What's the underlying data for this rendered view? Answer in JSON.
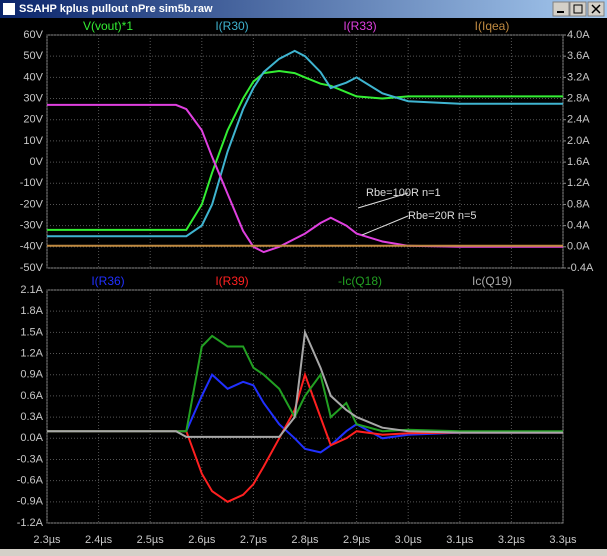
{
  "window": {
    "title": "SSAHP kplus pullout nPre sim5b.raw"
  },
  "chart_data": [
    {
      "type": "line",
      "x": [
        2.3,
        2.4,
        2.5,
        2.55,
        2.57,
        2.6,
        2.62,
        2.65,
        2.68,
        2.7,
        2.72,
        2.75,
        2.78,
        2.8,
        2.83,
        2.85,
        2.88,
        2.9,
        2.95,
        3.0,
        3.1,
        3.2,
        3.3
      ],
      "xlim": [
        2.3,
        3.3
      ],
      "ylim": [
        -50,
        60
      ],
      "yticks": [
        {
          "value": -50,
          "label": "-50V"
        },
        {
          "value": -40,
          "label": "-40V"
        },
        {
          "value": -30,
          "label": "-30V"
        },
        {
          "value": -20,
          "label": "-20V"
        },
        {
          "value": -10,
          "label": "-10V"
        },
        {
          "value": 0,
          "label": "0V"
        },
        {
          "value": 10,
          "label": "10V"
        },
        {
          "value": 20,
          "label": "20V"
        },
        {
          "value": 30,
          "label": "30V"
        },
        {
          "value": 40,
          "label": "40V"
        },
        {
          "value": 50,
          "label": "50V"
        },
        {
          "value": 60,
          "label": "60V"
        }
      ],
      "y2lim": [
        -0.4,
        4.0
      ],
      "y2ticks": [
        {
          "value": -0.4,
          "label": "-0.4A"
        },
        {
          "value": 0,
          "label": "0.0A"
        },
        {
          "value": 0.4,
          "label": "0.4A"
        },
        {
          "value": 0.8,
          "label": "0.8A"
        },
        {
          "value": 1.2,
          "label": "1.2A"
        },
        {
          "value": 1.6,
          "label": "1.6A"
        },
        {
          "value": 2.0,
          "label": "2.0A"
        },
        {
          "value": 2.4,
          "label": "2.4A"
        },
        {
          "value": 2.8,
          "label": "2.8A"
        },
        {
          "value": 3.2,
          "label": "3.2A"
        },
        {
          "value": 3.6,
          "label": "3.6A"
        },
        {
          "value": 4.0,
          "label": "4.0A"
        }
      ],
      "grid": true,
      "series": [
        {
          "name": "V(vout)*1",
          "color": "#33ee33",
          "values": [
            -32,
            -32,
            -32,
            -32,
            -32,
            -20,
            -5,
            15,
            30,
            38,
            42,
            43,
            42,
            40,
            37,
            36,
            33,
            31,
            30,
            31,
            31,
            31,
            31
          ]
        },
        {
          "name": "I(R30)",
          "color": "#3fb4d0",
          "axis": "y2",
          "values": [
            0.2,
            0.2,
            0.2,
            0.2,
            0.2,
            0.4,
            0.8,
            1.8,
            2.6,
            3.0,
            3.3,
            3.55,
            3.7,
            3.6,
            3.3,
            3.0,
            3.1,
            3.2,
            2.9,
            2.75,
            2.7,
            2.7,
            2.7
          ]
        },
        {
          "name": "I(R33)",
          "color": "#e040e0",
          "axis": "y2",
          "values": [
            2.68,
            2.68,
            2.68,
            2.68,
            2.6,
            2.2,
            1.7,
            1.0,
            0.3,
            0.0,
            -0.1,
            0.0,
            0.15,
            0.25,
            0.45,
            0.55,
            0.4,
            0.25,
            0.1,
            0.02,
            0,
            0,
            0
          ]
        },
        {
          "name": "I(Iqea)",
          "color": "#c08a40",
          "axis": "y2",
          "values": [
            0.02,
            0.02,
            0.02,
            0.02,
            0.02,
            0.02,
            0.02,
            0.02,
            0.02,
            0.02,
            0.02,
            0.02,
            0.02,
            0.02,
            0.02,
            0.02,
            0.02,
            0.02,
            0.02,
            0.02,
            0.02,
            0.02,
            0.02
          ]
        }
      ],
      "annotations": [
        {
          "text": "Rbe=100R n=1"
        },
        {
          "text": "Rbe=20R n=5"
        }
      ]
    },
    {
      "type": "line",
      "x": [
        2.3,
        2.4,
        2.5,
        2.55,
        2.57,
        2.6,
        2.62,
        2.65,
        2.68,
        2.7,
        2.72,
        2.75,
        2.78,
        2.8,
        2.83,
        2.85,
        2.88,
        2.9,
        2.95,
        3.0,
        3.1,
        3.2,
        3.3
      ],
      "xlim": [
        2.3,
        3.3
      ],
      "xticks": [
        {
          "value": 2.3,
          "label": "2.3µs"
        },
        {
          "value": 2.4,
          "label": "2.4µs"
        },
        {
          "value": 2.5,
          "label": "2.5µs"
        },
        {
          "value": 2.6,
          "label": "2.6µs"
        },
        {
          "value": 2.7,
          "label": "2.7µs"
        },
        {
          "value": 2.8,
          "label": "2.8µs"
        },
        {
          "value": 2.9,
          "label": "2.9µs"
        },
        {
          "value": 3.0,
          "label": "3.0µs"
        },
        {
          "value": 3.1,
          "label": "3.1µs"
        },
        {
          "value": 3.2,
          "label": "3.2µs"
        },
        {
          "value": 3.3,
          "label": "3.3µs"
        }
      ],
      "ylim": [
        -1.2,
        2.1
      ],
      "yticks": [
        {
          "value": -1.2,
          "label": "-1.2A"
        },
        {
          "value": -0.9,
          "label": "-0.9A"
        },
        {
          "value": -0.6,
          "label": "-0.6A"
        },
        {
          "value": -0.3,
          "label": "-0.3A"
        },
        {
          "value": 0,
          "label": "0.0A"
        },
        {
          "value": 0.3,
          "label": "0.3A"
        },
        {
          "value": 0.6,
          "label": "0.6A"
        },
        {
          "value": 0.9,
          "label": "0.9A"
        },
        {
          "value": 1.2,
          "label": "1.2A"
        },
        {
          "value": 1.5,
          "label": "1.5A"
        },
        {
          "value": 1.8,
          "label": "1.8A"
        },
        {
          "value": 2.1,
          "label": "2.1A"
        }
      ],
      "grid": true,
      "series": [
        {
          "name": "I(R36)",
          "color": "#2030ff",
          "values": [
            0.1,
            0.1,
            0.1,
            0.1,
            0.1,
            0.6,
            0.9,
            0.7,
            0.8,
            0.75,
            0.5,
            0.2,
            0.0,
            -0.15,
            -0.2,
            -0.1,
            0.1,
            0.2,
            0.0,
            0.05,
            0.08,
            0.08,
            0.08
          ]
        },
        {
          "name": "I(R39)",
          "color": "#ff2020",
          "values": [
            0.1,
            0.1,
            0.1,
            0.1,
            0.1,
            -0.5,
            -0.75,
            -0.9,
            -0.8,
            -0.65,
            -0.4,
            0.0,
            0.4,
            0.9,
            0.3,
            -0.1,
            0.0,
            0.1,
            0.05,
            0.07,
            0.08,
            0.08,
            0.08
          ]
        },
        {
          "name": "-Ic(Q18)",
          "color": "#22a022",
          "values": [
            0.1,
            0.1,
            0.1,
            0.1,
            0.1,
            1.3,
            1.45,
            1.3,
            1.3,
            1.0,
            0.9,
            0.7,
            0.3,
            0.6,
            0.9,
            0.3,
            0.5,
            0.2,
            0.1,
            0.12,
            0.1,
            0.1,
            0.1
          ]
        },
        {
          "name": "Ic(Q19)",
          "color": "#a8a8a8",
          "values": [
            0.1,
            0.1,
            0.1,
            0.1,
            0.02,
            0.02,
            0.02,
            0.02,
            0.02,
            0.02,
            0.02,
            0.02,
            0.3,
            1.5,
            1.0,
            0.6,
            0.4,
            0.3,
            0.15,
            0.1,
            0.08,
            0.08,
            0.08
          ]
        }
      ]
    }
  ]
}
